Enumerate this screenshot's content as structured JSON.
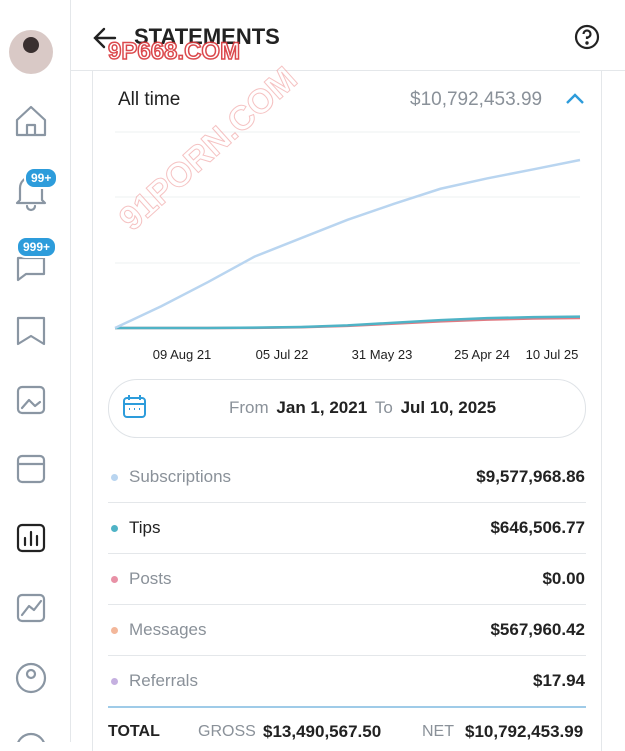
{
  "header": {
    "title": "STATEMENTS"
  },
  "badges": [
    "99+",
    "999+"
  ],
  "summary": {
    "period": "All time",
    "amount": "$10,792,453.99"
  },
  "chart": {
    "type": "line",
    "x_labels": [
      "09 Aug 21",
      "05 Jul 22",
      "31 May 23",
      "25 Apr 24",
      "10 Jul 25"
    ],
    "series": [
      {
        "color": "#b9d5f0",
        "values": [
          0,
          1250000,
          2620000,
          4070000,
          5120000,
          6170000,
          7080000,
          7940000,
          8530000,
          9050000,
          9580000
        ]
      },
      {
        "color": "#4fb3c6",
        "values": [
          0,
          0,
          0,
          20000,
          60000,
          150000,
          300000,
          450000,
          560000,
          620000,
          646000
        ]
      },
      {
        "color": "#e07a82",
        "values": [
          0,
          0,
          0,
          10000,
          40000,
          120000,
          250000,
          380000,
          480000,
          540000,
          568000
        ]
      }
    ]
  },
  "date_range": {
    "from_label": "From",
    "from": "Jan 1, 2021",
    "to_label": "To",
    "to": "Jul 10, 2025"
  },
  "rows": [
    {
      "label": "Subscriptions",
      "amount": "$9,577,968.86",
      "color": "#b9d5f0"
    },
    {
      "label": "Tips",
      "amount": "$646,506.77",
      "color": "#4fb3c6"
    },
    {
      "label": "Posts",
      "amount": "$0.00",
      "color": "#e891a6"
    },
    {
      "label": "Messages",
      "amount": "$567,960.42",
      "color": "#f3b79a"
    },
    {
      "label": "Referrals",
      "amount": "$17.94",
      "color": "#c5b0e0"
    }
  ],
  "totals": {
    "label": "TOTAL",
    "gross_label": "GROSS",
    "gross": "$13,490,567.50",
    "net_label": "NET",
    "net": "$10,792,453.99"
  },
  "watermarks": [
    "9P668.COM",
    "91PORN.COM"
  ]
}
